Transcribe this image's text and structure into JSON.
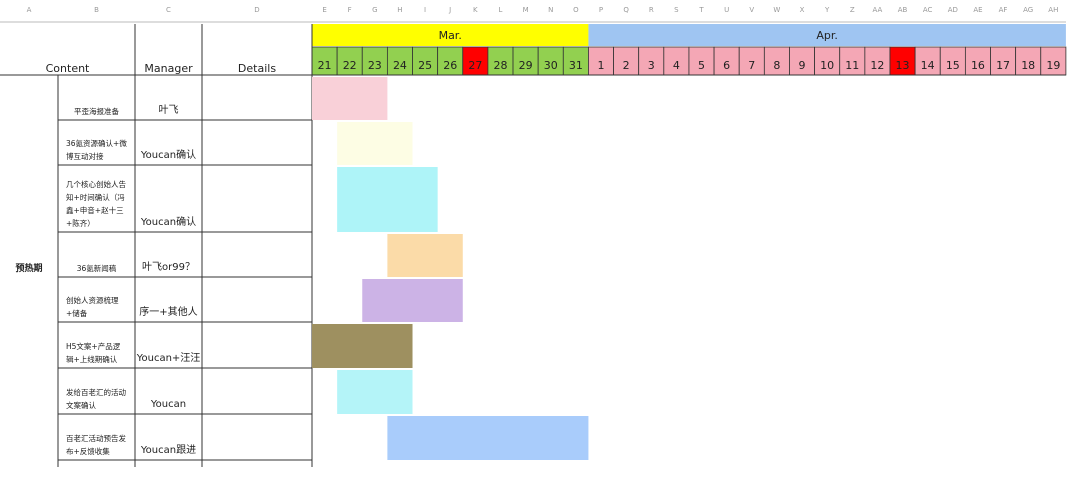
{
  "column_letters": [
    "A",
    "B",
    "C",
    "D",
    "E",
    "F",
    "G",
    "H",
    "I",
    "J",
    "K",
    "L",
    "M",
    "N",
    "O",
    "P",
    "Q",
    "R",
    "S",
    "T",
    "U",
    "V",
    "W",
    "X",
    "Y",
    "Z",
    "AA",
    "AB",
    "AC",
    "AD",
    "AE",
    "AF",
    "AG",
    "AH"
  ],
  "header": {
    "content": "Content",
    "manager": "Manager",
    "details": "Details"
  },
  "months": [
    {
      "name": "Mar.",
      "color": "#ffff00",
      "day_color": "#92d050",
      "days": [
        21,
        22,
        23,
        24,
        25,
        26,
        27,
        28,
        29,
        30,
        31
      ],
      "red_days": [
        27
      ]
    },
    {
      "name": "Apr.",
      "color": "#9fc5f2",
      "day_color": "#f4a7b5",
      "days": [
        1,
        2,
        3,
        4,
        5,
        6,
        7,
        8,
        9,
        10,
        11,
        12,
        13,
        14,
        15,
        16,
        17,
        18,
        19
      ],
      "red_days": [
        13
      ]
    }
  ],
  "section": "预热期",
  "tasks": [
    {
      "content": "平歪海报准备",
      "manager": "叶飞",
      "from": 21,
      "to": 23,
      "color": "#f9d0d8"
    },
    {
      "content": "36氪资源确认+微博互动对接",
      "manager": "Youcan确认",
      "from": 22,
      "to": 24,
      "color": "#fdfde4"
    },
    {
      "content": "几个核心创始人告知+时间确认（冯鑫+申音+赵十三+陈齐）",
      "manager": "Youcan确认",
      "from": 22,
      "to": 25,
      "color": "#aef4f8"
    },
    {
      "content": "36氪新闻稿",
      "manager": "叶飞or99？",
      "from": 24,
      "to": 26,
      "color": "#fbdba8"
    },
    {
      "content": "创始人资源梳理+储备",
      "manager": "序一+其他人",
      "from": 23,
      "to": 26,
      "color": "#ccb3e6"
    },
    {
      "content": "H5文案+产品逻辑+上线期确认",
      "manager": "Youcan+汪汪",
      "from": 21,
      "to": 24,
      "color": "#9e9060"
    },
    {
      "content": "发给百老汇的活动文案确认",
      "manager": "Youcan",
      "from": 22,
      "to": 24,
      "color": "#b4f4f8"
    },
    {
      "content": "百老汇活动预告发布+反馈收集",
      "manager": "Youcan跟进",
      "from": 24,
      "to": 31,
      "color": "#a9ccfb"
    }
  ]
}
